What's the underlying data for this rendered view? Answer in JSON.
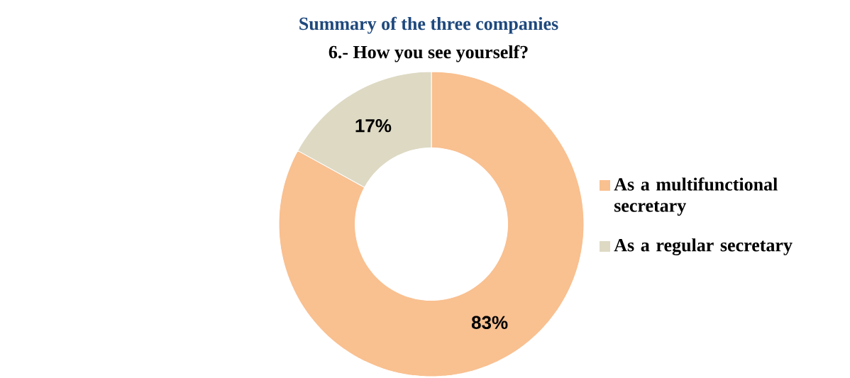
{
  "chart_data": {
    "type": "donut",
    "title": "Summary of the three companies",
    "subtitle": "6.- How you see yourself?",
    "categories": [
      "As a multifunctional secretary",
      "As a regular secretary"
    ],
    "values": [
      83,
      17
    ],
    "value_labels": [
      "83%",
      "17%"
    ],
    "colors": [
      "#f9c090",
      "#ddd9c3"
    ],
    "legend": "right"
  }
}
